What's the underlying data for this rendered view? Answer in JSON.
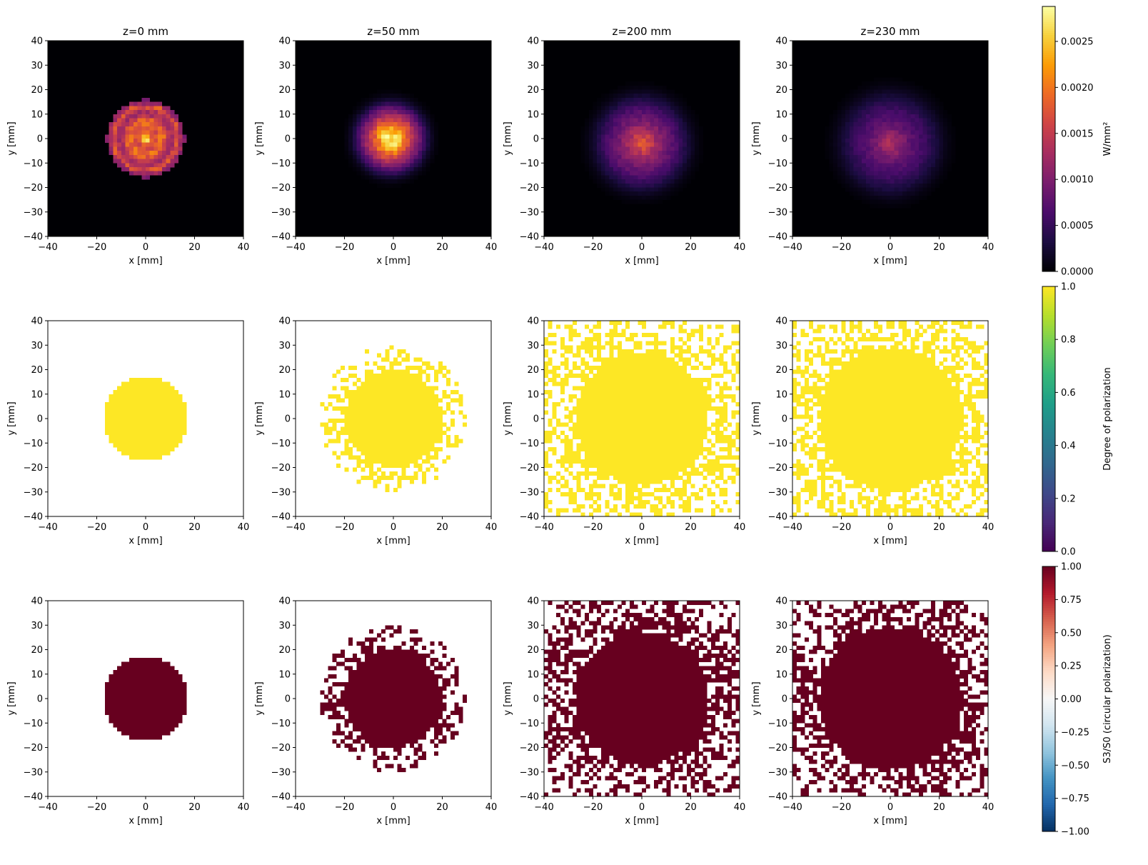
{
  "figure": {
    "column_titles": [
      "z=0 mm",
      "z=50 mm",
      "z=200 mm",
      "z=230 mm"
    ],
    "xlabel": "x [mm]",
    "ylabel": "y [mm]",
    "x_ticks": [
      "−40",
      "−20",
      "0",
      "20",
      "40"
    ],
    "y_ticks": [
      "40",
      "30",
      "20",
      "10",
      "0",
      "−10",
      "−20",
      "−30",
      "−40"
    ]
  },
  "colorbars": [
    {
      "label": "W/mm²",
      "tick_labels": [
        "0.0025",
        "0.0020",
        "0.0015",
        "0.0010",
        "0.0005",
        "0.0000"
      ],
      "tick_values": [
        0.0025,
        0.002,
        0.0015,
        0.001,
        0.0005,
        0.0
      ],
      "range": [
        0,
        0.00288
      ],
      "colormap": "inferno",
      "colors": [
        "#000004",
        "#1b0c41",
        "#4a0c6b",
        "#781c6d",
        "#a52c60",
        "#cf4446",
        "#ed6925",
        "#fb9b06",
        "#f7d13d",
        "#fcffa4"
      ]
    },
    {
      "label": "Degree of polarization",
      "tick_labels": [
        "1.0",
        "0.8",
        "0.6",
        "0.4",
        "0.2",
        "0.0"
      ],
      "tick_values": [
        1.0,
        0.8,
        0.6,
        0.4,
        0.2,
        0.0
      ],
      "range": [
        0,
        1
      ],
      "colormap": "viridis",
      "colors": [
        "#440154",
        "#482878",
        "#3e4989",
        "#31688e",
        "#26828e",
        "#1f9e89",
        "#35b779",
        "#6ece58",
        "#b5de2b",
        "#fde725"
      ]
    },
    {
      "label": "S3/S0 (circular polarization)",
      "tick_labels": [
        "1.00",
        "0.75",
        "0.50",
        "0.25",
        "0.00",
        "−0.25",
        "−0.50",
        "−0.75",
        "−1.00"
      ],
      "tick_values": [
        1.0,
        0.75,
        0.5,
        0.25,
        0.0,
        -0.25,
        -0.5,
        -0.75,
        -1.0
      ],
      "range": [
        -1,
        1
      ],
      "colormap": "RdBu_r",
      "colors": [
        "#053061",
        "#2166ac",
        "#4393c3",
        "#92c5de",
        "#d1e5f0",
        "#f7f7f7",
        "#fddbc7",
        "#f4a582",
        "#d6604d",
        "#b2182b",
        "#67001f"
      ]
    }
  ],
  "chart_data": [
    {
      "type": "heatmap",
      "row": "intensity",
      "title": "z=0 mm",
      "xlabel": "x [mm]",
      "ylabel": "y [mm]",
      "xlim": [
        -40,
        40
      ],
      "ylim": [
        -40,
        40
      ],
      "colorbar": "W/mm²",
      "beam": {
        "radius_mm": 16,
        "peak": 0.0029,
        "center_mm": [
          0,
          0
        ]
      }
    },
    {
      "type": "heatmap",
      "row": "intensity",
      "title": "z=50 mm",
      "xlabel": "x [mm]",
      "ylabel": "y [mm]",
      "xlim": [
        -40,
        40
      ],
      "ylim": [
        -40,
        40
      ],
      "colorbar": "W/mm²",
      "beam": {
        "radius_mm": 19,
        "peak": 0.0028,
        "center_mm": [
          -1,
          0
        ]
      }
    },
    {
      "type": "heatmap",
      "row": "intensity",
      "title": "z=200 mm",
      "xlabel": "x [mm]",
      "ylabel": "y [mm]",
      "xlim": [
        -40,
        40
      ],
      "ylim": [
        -40,
        40
      ],
      "colorbar": "W/mm²",
      "beam": {
        "radius_mm": 25,
        "peak": 0.0017,
        "center_mm": [
          0,
          -2
        ]
      }
    },
    {
      "type": "heatmap",
      "row": "intensity",
      "title": "z=230 mm",
      "xlabel": "x [mm]",
      "ylabel": "y [mm]",
      "xlim": [
        -40,
        40
      ],
      "ylim": [
        -40,
        40
      ],
      "colorbar": "W/mm²",
      "beam": {
        "radius_mm": 27,
        "peak": 0.0013,
        "center_mm": [
          0,
          -2
        ]
      }
    },
    {
      "type": "heatmap",
      "row": "degree_of_polarization",
      "xlabel": "x [mm]",
      "ylabel": "y [mm]",
      "xlim": [
        -40,
        40
      ],
      "ylim": [
        -40,
        40
      ],
      "colorbar": "Degree of polarization",
      "value_in_beam": 1.0,
      "core_radius_mm": 17,
      "scatter_radius_mm": 17,
      "scatter_density": 0
    },
    {
      "type": "heatmap",
      "row": "degree_of_polarization",
      "xlabel": "x [mm]",
      "ylabel": "y [mm]",
      "xlim": [
        -40,
        40
      ],
      "ylim": [
        -40,
        40
      ],
      "colorbar": "Degree of polarization",
      "value_in_beam": 1.0,
      "core_radius_mm": 20,
      "scatter_radius_mm": 30,
      "scatter_density": 0.5
    },
    {
      "type": "heatmap",
      "row": "degree_of_polarization",
      "xlabel": "x [mm]",
      "ylabel": "y [mm]",
      "xlim": [
        -40,
        40
      ],
      "ylim": [
        -40,
        40
      ],
      "colorbar": "Degree of polarization",
      "value_in_beam": 1.0,
      "core_radius_mm": 27,
      "scatter_radius_mm": 60,
      "scatter_density": 0.6
    },
    {
      "type": "heatmap",
      "row": "degree_of_polarization",
      "xlabel": "x [mm]",
      "ylabel": "y [mm]",
      "xlim": [
        -40,
        40
      ],
      "ylim": [
        -40,
        40
      ],
      "colorbar": "Degree of polarization",
      "value_in_beam": 1.0,
      "core_radius_mm": 29,
      "scatter_radius_mm": 60,
      "scatter_density": 0.6
    },
    {
      "type": "heatmap",
      "row": "s3_over_s0",
      "xlabel": "x [mm]",
      "ylabel": "y [mm]",
      "xlim": [
        -40,
        40
      ],
      "ylim": [
        -40,
        40
      ],
      "colorbar": "S3/S0 (circular polarization)",
      "value_in_beam": 1.0,
      "core_radius_mm": 17,
      "scatter_radius_mm": 17,
      "scatter_density": 0
    },
    {
      "type": "heatmap",
      "row": "s3_over_s0",
      "xlabel": "x [mm]",
      "ylabel": "y [mm]",
      "xlim": [
        -40,
        40
      ],
      "ylim": [
        -40,
        40
      ],
      "colorbar": "S3/S0 (circular polarization)",
      "value_in_beam": 1.0,
      "core_radius_mm": 20,
      "scatter_radius_mm": 30,
      "scatter_density": 0.5
    },
    {
      "type": "heatmap",
      "row": "s3_over_s0",
      "xlabel": "x [mm]",
      "ylabel": "y [mm]",
      "xlim": [
        -40,
        40
      ],
      "ylim": [
        -40,
        40
      ],
      "colorbar": "S3/S0 (circular polarization)",
      "value_in_beam": 1.0,
      "core_radius_mm": 27,
      "scatter_radius_mm": 60,
      "scatter_density": 0.6
    },
    {
      "type": "heatmap",
      "row": "s3_over_s0",
      "xlabel": "x [mm]",
      "ylabel": "y [mm]",
      "xlim": [
        -40,
        40
      ],
      "ylim": [
        -40,
        40
      ],
      "colorbar": "S3/S0 (circular polarization)",
      "value_in_beam": 1.0,
      "core_radius_mm": 29,
      "scatter_radius_mm": 60,
      "scatter_density": 0.6
    }
  ]
}
